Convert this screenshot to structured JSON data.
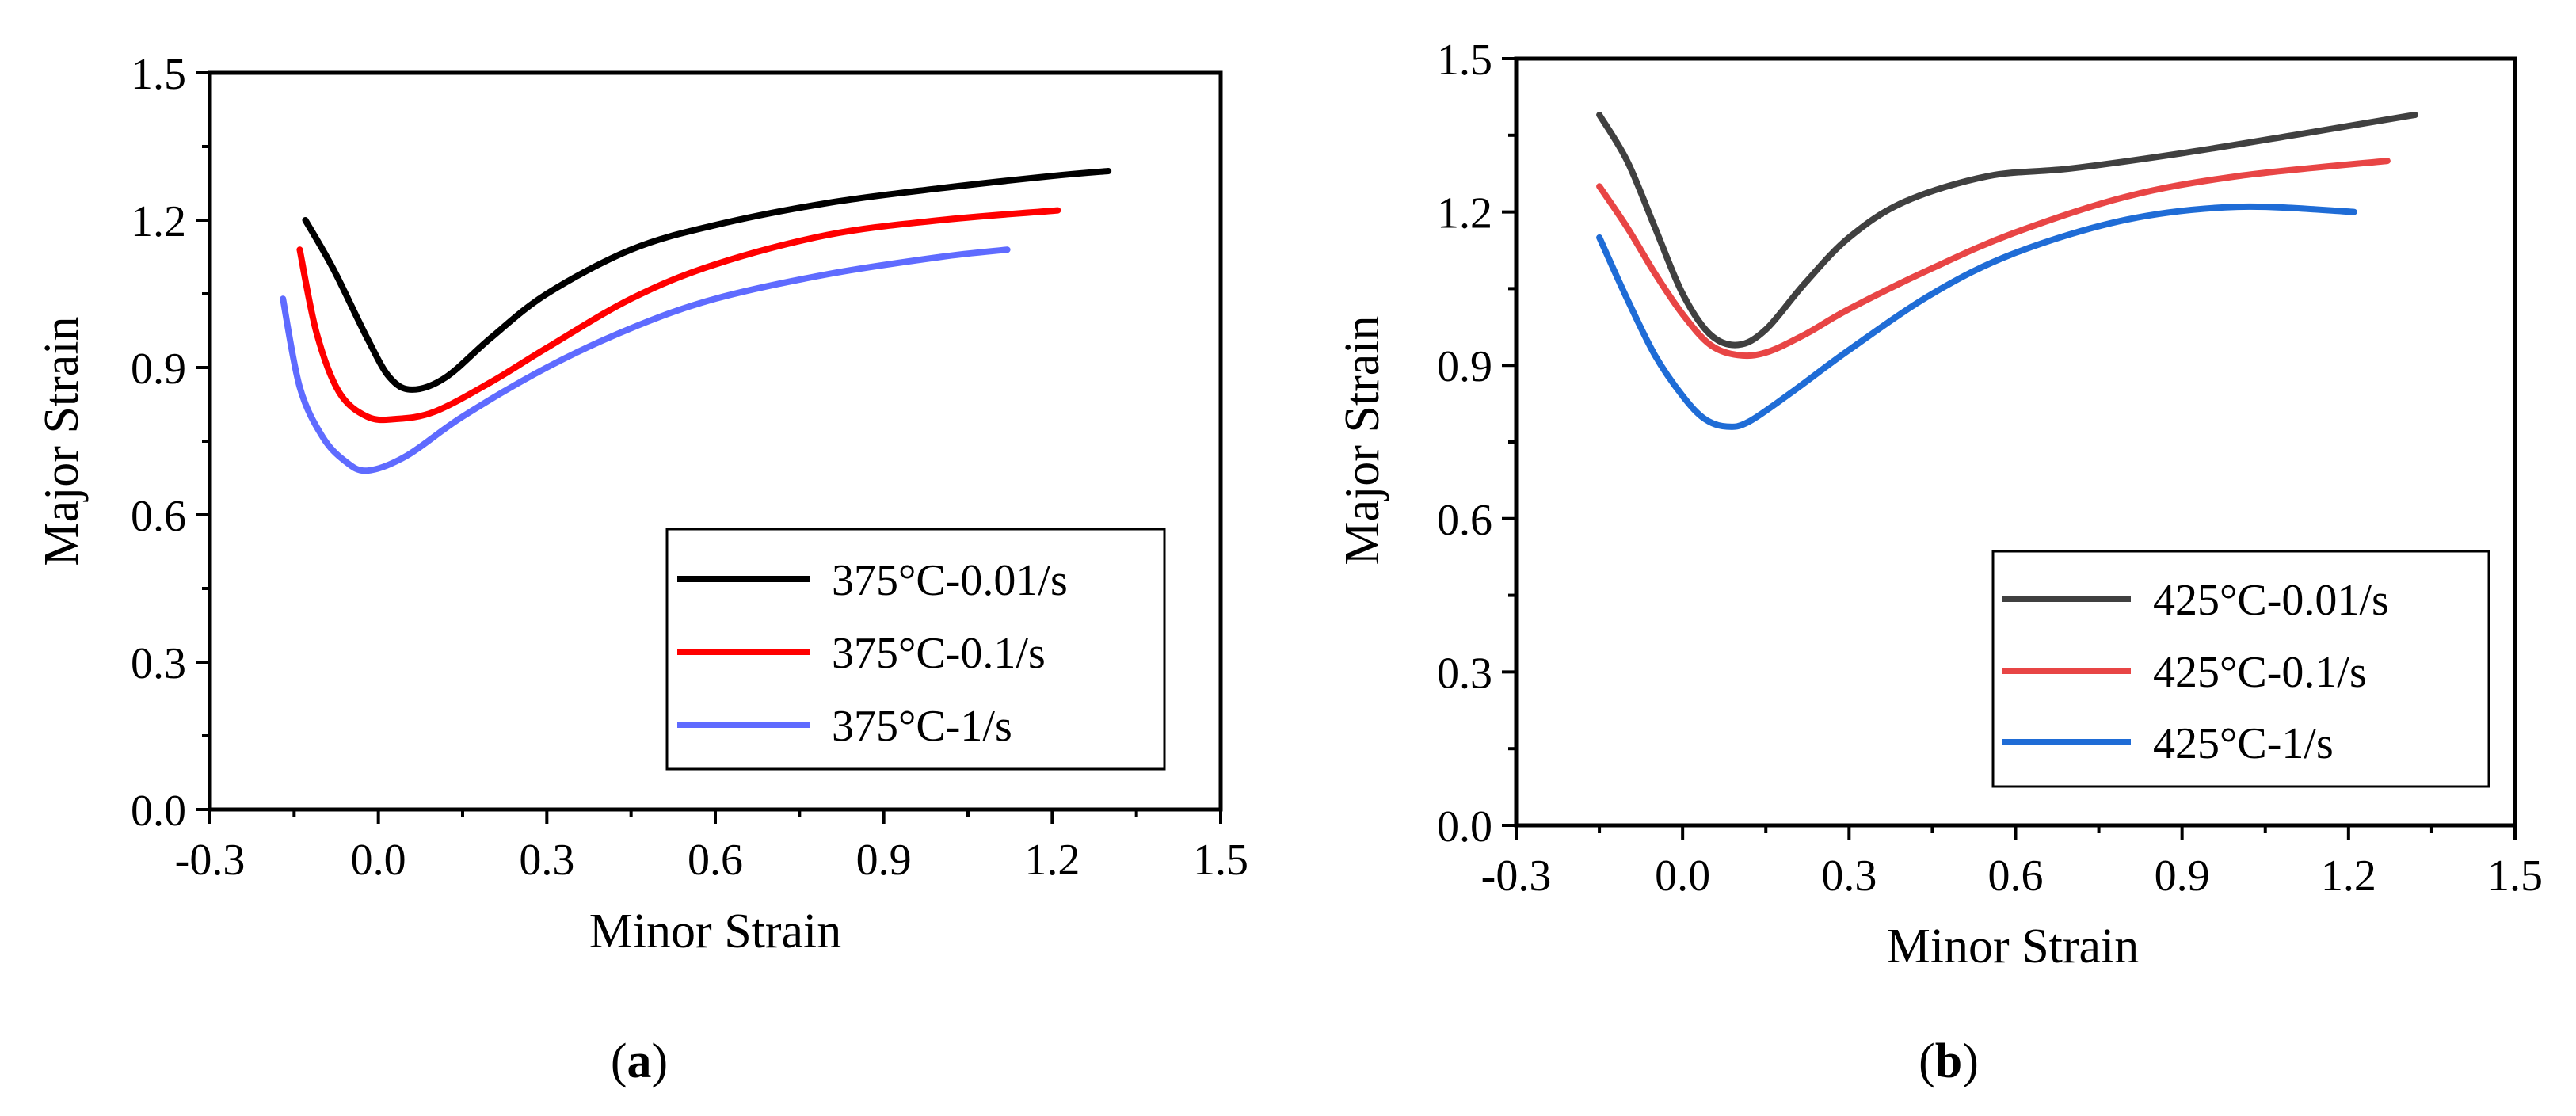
{
  "chart_data": [
    {
      "type": "line",
      "panel_label": "(a)",
      "panel_letter": "a",
      "xlabel": "Minor Strain",
      "ylabel": "Major Strain",
      "xlim": [
        -0.3,
        1.5
      ],
      "ylim": [
        0.0,
        1.5
      ],
      "x_ticks": [
        -0.3,
        0.0,
        0.3,
        0.6,
        0.9,
        1.2,
        1.5
      ],
      "y_ticks": [
        0.0,
        0.3,
        0.6,
        0.9,
        1.2,
        1.5
      ],
      "x_tick_labels": [
        "-0.3",
        "0.0",
        "0.3",
        "0.6",
        "0.9",
        "1.2",
        "1.5"
      ],
      "y_tick_labels": [
        "0.0",
        "0.3",
        "0.6",
        "0.9",
        "1.2",
        "1.5"
      ],
      "legend_position": "bottom-right",
      "series": [
        {
          "name": "375°C-0.01/s",
          "color": "#000000",
          "x": [
            -0.13,
            -0.08,
            -0.02,
            0.02,
            0.06,
            0.12,
            0.2,
            0.3,
            0.45,
            0.6,
            0.8,
            1.0,
            1.2,
            1.3
          ],
          "y": [
            1.2,
            1.1,
            0.96,
            0.88,
            0.855,
            0.88,
            0.96,
            1.05,
            1.14,
            1.19,
            1.235,
            1.265,
            1.29,
            1.3
          ]
        },
        {
          "name": "375°C-0.1/s",
          "color": "#ff0000",
          "x": [
            -0.14,
            -0.11,
            -0.07,
            -0.02,
            0.03,
            0.1,
            0.2,
            0.3,
            0.45,
            0.6,
            0.8,
            1.0,
            1.21
          ],
          "y": [
            1.14,
            0.97,
            0.85,
            0.8,
            0.795,
            0.81,
            0.87,
            0.94,
            1.04,
            1.11,
            1.17,
            1.2,
            1.22
          ]
        },
        {
          "name": "375°C-1/s",
          "color": "#5f6bff",
          "x": [
            -0.17,
            -0.14,
            -0.1,
            -0.06,
            -0.02,
            0.05,
            0.15,
            0.3,
            0.45,
            0.6,
            0.8,
            1.0,
            1.12
          ],
          "y": [
            1.04,
            0.86,
            0.76,
            0.71,
            0.69,
            0.72,
            0.8,
            0.9,
            0.98,
            1.04,
            1.09,
            1.125,
            1.14
          ]
        }
      ]
    },
    {
      "type": "line",
      "panel_label": "(b)",
      "panel_letter": "b",
      "xlabel": "Minor Strain",
      "ylabel": "Major Strain",
      "xlim": [
        -0.3,
        1.5
      ],
      "ylim": [
        0.0,
        1.5
      ],
      "x_ticks": [
        -0.3,
        0.0,
        0.3,
        0.6,
        0.9,
        1.2,
        1.5
      ],
      "y_ticks": [
        0.0,
        0.3,
        0.6,
        0.9,
        1.2,
        1.5
      ],
      "x_tick_labels": [
        "-0.3",
        "0.0",
        "0.3",
        "0.6",
        "0.9",
        "1.2",
        "1.5"
      ],
      "y_tick_labels": [
        "0.0",
        "0.3",
        "0.6",
        "0.9",
        "1.2",
        "1.5"
      ],
      "legend_position": "bottom-right",
      "series": [
        {
          "name": "425°C-0.01/s",
          "color": "#404040",
          "x": [
            -0.15,
            -0.1,
            -0.05,
            0.0,
            0.05,
            0.1,
            0.15,
            0.22,
            0.3,
            0.4,
            0.55,
            0.7,
            0.9,
            1.1,
            1.32
          ],
          "y": [
            1.39,
            1.3,
            1.17,
            1.04,
            0.96,
            0.94,
            0.97,
            1.06,
            1.15,
            1.22,
            1.27,
            1.285,
            1.315,
            1.35,
            1.39
          ]
        },
        {
          "name": "425°C-0.1/s",
          "color": "#e84545",
          "x": [
            -0.15,
            -0.1,
            -0.05,
            0.0,
            0.05,
            0.1,
            0.15,
            0.22,
            0.3,
            0.45,
            0.6,
            0.8,
            1.0,
            1.27
          ],
          "y": [
            1.25,
            1.17,
            1.08,
            1.0,
            0.94,
            0.92,
            0.925,
            0.96,
            1.01,
            1.09,
            1.16,
            1.23,
            1.27,
            1.3
          ]
        },
        {
          "name": "425°C-1/s",
          "color": "#1f6cd6",
          "x": [
            -0.15,
            -0.1,
            -0.05,
            0.0,
            0.04,
            0.08,
            0.12,
            0.2,
            0.3,
            0.45,
            0.6,
            0.8,
            1.0,
            1.21
          ],
          "y": [
            1.15,
            1.03,
            0.92,
            0.84,
            0.795,
            0.78,
            0.79,
            0.85,
            0.93,
            1.04,
            1.12,
            1.185,
            1.21,
            1.2
          ]
        }
      ]
    }
  ]
}
